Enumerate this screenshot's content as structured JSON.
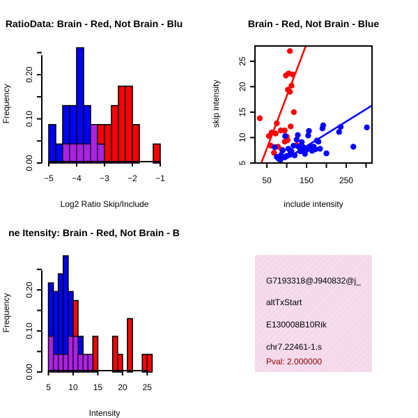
{
  "colors": {
    "red": "#ff0000",
    "blue": "#0000ff",
    "purple": "#a020f0",
    "pval": "#8b0000",
    "panel_bg": "#f4d6ea"
  },
  "chart_data": [
    {
      "type": "bar",
      "subtype": "overlaid-histogram",
      "title": "RatioData: Brain - Red, Not Brain - Blu",
      "xlabel": "Log2 Ratio Skip/Include",
      "ylabel": "Frequency",
      "xlim": [
        -5.1,
        -0.9
      ],
      "ylim": [
        0,
        0.265
      ],
      "xticks": [
        -5,
        -4,
        -3,
        -2,
        -1
      ],
      "yticks": [
        0.0,
        0.1,
        0.2
      ],
      "ytick_labels": [
        "0.00",
        "0.10",
        "0.20"
      ],
      "bin_width": 0.25,
      "series": [
        {
          "name": "Not Brain",
          "color": "blue",
          "bins": [
            [
              -5.0,
              0.087
            ],
            [
              -4.75,
              0.043
            ],
            [
              -4.5,
              0.13
            ],
            [
              -4.25,
              0.13
            ],
            [
              -4.0,
              0.261
            ],
            [
              -3.75,
              0.13
            ],
            [
              -3.5,
              0.087
            ],
            [
              -3.25,
              0.043
            ]
          ]
        },
        {
          "name": "Brain",
          "color": "red",
          "bins": [
            [
              -4.5,
              0.043
            ],
            [
              -4.25,
              0.043
            ],
            [
              -4.0,
              0.043
            ],
            [
              -3.75,
              0.043
            ],
            [
              -3.5,
              0.087
            ],
            [
              -3.25,
              0.087
            ],
            [
              -3.0,
              0.087
            ],
            [
              -2.75,
              0.13
            ],
            [
              -2.5,
              0.174
            ],
            [
              -2.25,
              0.174
            ],
            [
              -2.0,
              0.087
            ],
            [
              -1.75,
              0.0
            ],
            [
              -1.5,
              0.0
            ],
            [
              -1.25,
              0.043
            ]
          ]
        }
      ]
    },
    {
      "type": "scatter",
      "title": "Brain - Red, Not Brain - Blue",
      "xlabel": "include intensity",
      "ylabel": "skip intensity",
      "xlim": [
        20,
        315
      ],
      "ylim": [
        5,
        28
      ],
      "xticks": [
        50,
        150,
        250
      ],
      "yticks": [
        5,
        10,
        15,
        20,
        25
      ],
      "series": [
        {
          "name": "Brain",
          "color": "red",
          "points": [
            [
              32,
              13.8
            ],
            [
              55,
              10.3
            ],
            [
              62,
              11
            ],
            [
              68,
              7
            ],
            [
              72,
              10.8
            ],
            [
              78,
              8.2
            ],
            [
              85,
              11.4
            ],
            [
              88,
              7.6
            ],
            [
              95,
              9.2
            ],
            [
              98,
              22.2
            ],
            [
              100,
              10.2
            ],
            [
              103,
              19.4
            ],
            [
              105,
              22.6
            ],
            [
              108,
              19
            ],
            [
              110,
              12.2
            ],
            [
              112,
              20.2
            ],
            [
              115,
              22.4
            ],
            [
              118,
              15
            ],
            [
              108,
              27
            ],
            [
              95,
              11.4
            ],
            [
              125,
              8.5
            ],
            [
              75,
              12.8
            ],
            [
              60,
              8.4
            ],
            [
              102,
              9.5
            ]
          ],
          "fit_line": [
            [
              36,
              5
            ],
            [
              148,
              28
            ]
          ]
        },
        {
          "name": "Not Brain",
          "color": "blue",
          "points": [
            [
              70,
              8.1
            ],
            [
              75,
              6.2
            ],
            [
              80,
              5.8
            ],
            [
              86,
              6.6
            ],
            [
              90,
              7.5
            ],
            [
              95,
              6.1
            ],
            [
              100,
              6.4
            ],
            [
              104,
              7.8
            ],
            [
              108,
              6.6
            ],
            [
              112,
              7.3
            ],
            [
              117,
              8.4
            ],
            [
              120,
              6.5
            ],
            [
              125,
              9.6
            ],
            [
              130,
              8.2
            ],
            [
              134,
              7.3
            ],
            [
              138,
              9.1
            ],
            [
              142,
              8.1
            ],
            [
              146,
              7.5
            ],
            [
              150,
              7.6
            ],
            [
              154,
              10.4
            ],
            [
              156,
              11.3
            ],
            [
              160,
              8.3
            ],
            [
              164,
              7.4
            ],
            [
              168,
              8.2
            ],
            [
              172,
              7.7
            ],
            [
              176,
              9.4
            ],
            [
              180,
              9.2
            ],
            [
              184,
              7.8
            ],
            [
              190,
              11.8
            ],
            [
              192,
              12.4
            ],
            [
              200,
              6.9
            ],
            [
              232,
              11.1
            ],
            [
              236,
              12.1
            ],
            [
              268,
              8.2
            ],
            [
              302,
              12
            ],
            [
              96,
              10.3
            ],
            [
              128,
              10.5
            ],
            [
              84,
              5.6
            ],
            [
              110,
              7.1
            ],
            [
              146,
              6.8
            ]
          ],
          "fit_line": [
            [
              100,
              5.9
            ],
            [
              315,
              16.3
            ]
          ]
        }
      ]
    },
    {
      "type": "bar",
      "subtype": "overlaid-histogram",
      "title": "ne Itensity: Brain - Red, Not Brain - B",
      "xlabel": "Intensity",
      "ylabel": "Frequency",
      "xlim": [
        4.5,
        28.2
      ],
      "ylim": [
        0,
        0.285
      ],
      "xticks": [
        5,
        10,
        15,
        20,
        25
      ],
      "yticks": [
        0.0,
        0.1,
        0.2
      ],
      "ytick_labels": [
        "0.00",
        "0.10",
        "0.20"
      ],
      "bin_width": 1,
      "series": [
        {
          "name": "Not Brain",
          "color": "blue",
          "bins": [
            [
              5,
              0.217
            ],
            [
              6,
              0.196
            ],
            [
              7,
              0.239
            ],
            [
              8,
              0.283
            ],
            [
              9,
              0.196
            ],
            [
              10,
              0.087
            ],
            [
              11,
              0.087
            ],
            [
              12,
              0.043
            ],
            [
              13,
              0.043
            ]
          ]
        },
        {
          "name": "Brain",
          "color": "red",
          "bins": [
            [
              5,
              0.087
            ],
            [
              6,
              0.043
            ],
            [
              7,
              0.043
            ],
            [
              8,
              0.043
            ],
            [
              9,
              0.087
            ],
            [
              10,
              0.174
            ],
            [
              11,
              0.043
            ],
            [
              12,
              0.043
            ],
            [
              13,
              0.043
            ],
            [
              14,
              0.087
            ],
            [
              15,
              0.0
            ],
            [
              16,
              0.0
            ],
            [
              17,
              0.0
            ],
            [
              18,
              0.087
            ],
            [
              19,
              0.043
            ],
            [
              20,
              0.0
            ],
            [
              21,
              0.13
            ],
            [
              22,
              0.0
            ],
            [
              23,
              0.0
            ],
            [
              24,
              0.043
            ],
            [
              25,
              0.043
            ]
          ]
        }
      ]
    }
  ],
  "info_panel": {
    "line1": "G7193318@J940832@j_",
    "line2": "altTxStart",
    "line3": "E130008B10Rik",
    "line4": "chr7.22461-1.s",
    "pval": "Pval: 2.000000"
  }
}
